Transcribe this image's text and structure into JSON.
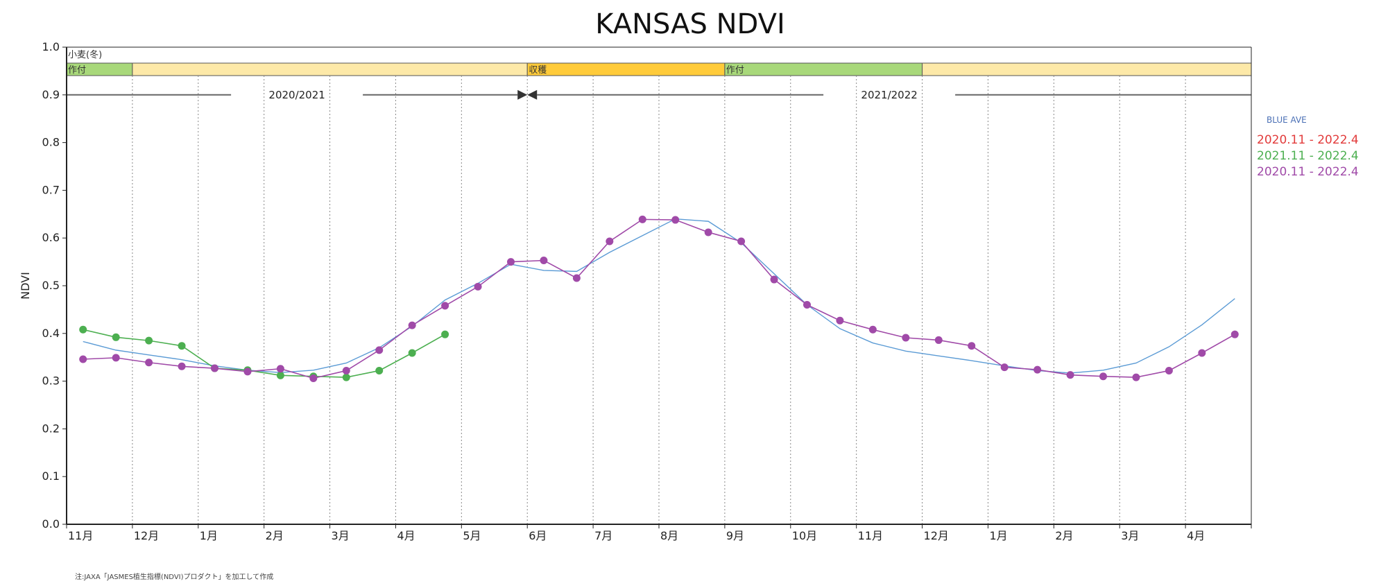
{
  "chart_data": {
    "type": "line",
    "title": "KANSAS NDVI",
    "ylabel": "NDVI",
    "xlabel": "",
    "ylim": [
      0,
      1.0
    ],
    "y_ticks": [
      "0.0",
      "0.1",
      "0.2",
      "0.3",
      "0.4",
      "0.5",
      "0.6",
      "0.7",
      "0.8",
      "0.9",
      "1.0"
    ],
    "x_month_labels": [
      "11月",
      "12月",
      "1月",
      "2月",
      "3月",
      "4月",
      "5月",
      "6月",
      "7月",
      "8月",
      "9月",
      "10月",
      "11月",
      "12月",
      "1月",
      "2月",
      "3月",
      "4月"
    ],
    "grid": "vertical dotted at month boundaries",
    "crop_name": "小麦(冬)",
    "crop_stages": [
      {
        "label": "作付",
        "start": 0.0,
        "end": 1.0,
        "color": "#a8d87a"
      },
      {
        "label": "",
        "start": 1.0,
        "end": 7.0,
        "color": "#fde9a8"
      },
      {
        "label": "収穫",
        "start": 7.0,
        "end": 10.0,
        "color": "#ffcb3a"
      },
      {
        "label": "作付",
        "start": 10.0,
        "end": 13.0,
        "color": "#a8d87a"
      },
      {
        "label": "",
        "start": 13.0,
        "end": 18.0,
        "color": "#fde9a8"
      }
    ],
    "seasons": [
      {
        "label": "2020/2021",
        "start": 0.0,
        "end": 7.0
      },
      {
        "label": "2021/2022",
        "start": 7.0,
        "end": 18.0
      }
    ],
    "legend_placement": "right",
    "legend": [
      {
        "name": "BLUE AVE",
        "color": "#4a6fb5"
      },
      {
        "name": "2020.11 - 2022.4",
        "color": "#e23b3b"
      },
      {
        "name": "2021.11 - 2022.4",
        "color": "#4caf50"
      },
      {
        "name": "2020.11 - 2022.4",
        "color": "#a04aa8"
      }
    ],
    "series": [
      {
        "name": "BLUE AVE",
        "color": "#5b9bd5",
        "markers": false,
        "x": [
          0.25,
          0.75,
          1.25,
          1.75,
          2.25,
          2.75,
          3.25,
          3.75,
          4.25,
          4.75,
          5.25,
          5.75,
          6.25,
          6.75,
          7.25,
          7.75,
          8.25,
          8.75,
          9.25,
          9.75,
          10.25,
          10.75,
          11.25,
          11.75,
          12.25,
          12.75,
          13.25,
          13.75,
          14.25,
          14.75,
          15.25,
          15.75,
          16.25,
          16.75,
          17.25,
          17.75
        ],
        "y": [
          0.383,
          0.365,
          0.355,
          0.345,
          0.332,
          0.323,
          0.318,
          0.323,
          0.338,
          0.37,
          0.415,
          0.47,
          0.505,
          0.545,
          0.532,
          0.53,
          0.57,
          0.605,
          0.64,
          0.635,
          0.59,
          0.525,
          0.46,
          0.41,
          0.38,
          0.363,
          0.353,
          0.343,
          0.332,
          0.322,
          0.317,
          0.323,
          0.338,
          0.372,
          0.418,
          0.473
        ]
      },
      {
        "name": "2021.11 - 2022.4",
        "color": "#4caf50",
        "markers": true,
        "x": [
          0.25,
          0.75,
          1.25,
          1.75,
          2.25,
          2.75,
          3.25,
          3.75,
          4.25,
          4.75,
          5.25,
          5.75
        ],
        "y": [
          0.408,
          0.392,
          0.385,
          0.374,
          0.327,
          0.323,
          0.312,
          0.31,
          0.308,
          0.322,
          0.359,
          0.398
        ]
      },
      {
        "name": "2020.11 - 2022.4",
        "color": "#a04aa8",
        "markers": true,
        "x": [
          0.25,
          0.75,
          1.25,
          1.75,
          2.25,
          2.75,
          3.25,
          3.75,
          4.25,
          4.75,
          5.25,
          5.75,
          6.25,
          6.75,
          7.25,
          7.75,
          8.25,
          8.75,
          9.25,
          9.75,
          10.25,
          10.75,
          11.25,
          11.75,
          12.25,
          12.75,
          13.25,
          13.75,
          14.25,
          14.75,
          15.25,
          15.75,
          16.25,
          16.75,
          17.25,
          17.75
        ],
        "y": [
          0.346,
          0.349,
          0.339,
          0.331,
          0.327,
          0.32,
          0.326,
          0.306,
          0.322,
          0.365,
          0.417,
          0.458,
          0.498,
          0.55,
          0.553,
          0.516,
          0.593,
          0.639,
          0.638,
          0.612,
          0.593,
          0.513,
          0.46,
          0.427,
          0.408,
          0.391,
          0.386,
          0.374,
          0.329,
          0.324,
          0.313,
          0.31,
          0.308,
          0.322,
          0.359,
          0.398
        ]
      }
    ],
    "footnote": "注:JAXA「JASMES植生指標(NDVI)プロダクト」を加工して作成"
  }
}
